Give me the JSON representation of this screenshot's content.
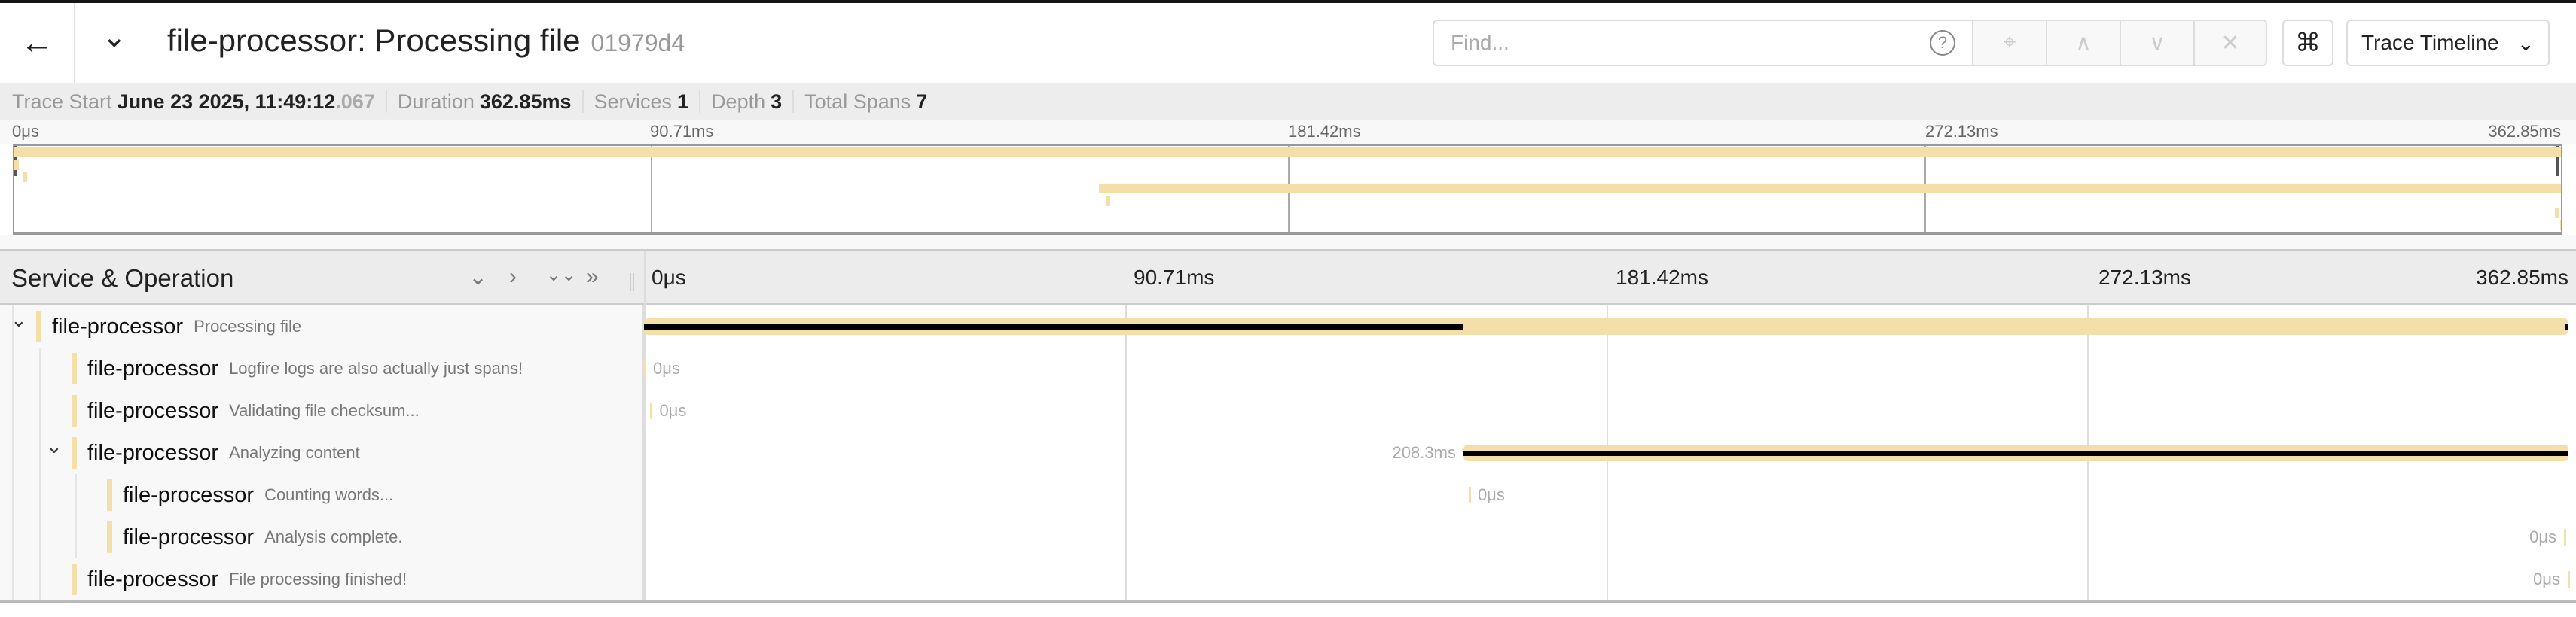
{
  "header": {
    "back_icon": "arrow-left-icon",
    "collapse_icon": "chevron-down-icon",
    "service": "file-processor",
    "operation": "Processing file",
    "title": "file-processor: Processing file",
    "trace_id_short": "01979d4"
  },
  "search": {
    "placeholder": "Find...",
    "value": "",
    "help_label": "?",
    "buttons": [
      {
        "name": "locate",
        "glyph": "⌖"
      },
      {
        "name": "previous",
        "glyph": "∧"
      },
      {
        "name": "next",
        "glyph": "∨"
      },
      {
        "name": "clear",
        "glyph": "✕"
      }
    ]
  },
  "shortcut_label": "⌘",
  "view_select": {
    "value": "Trace Timeline",
    "chevron": "⌄"
  },
  "info": {
    "trace_start_label": "Trace Start",
    "trace_start": "June 23 2025, 11:49:12",
    "trace_start_ms": ".067",
    "duration_label": "Duration",
    "duration": "362.85ms",
    "services_label": "Services",
    "services": "1",
    "depth_label": "Depth",
    "depth": "3",
    "total_spans_label": "Total Spans",
    "total_spans": "7"
  },
  "ticks": [
    "0μs",
    "90.71ms",
    "181.42ms",
    "272.13ms",
    "362.85ms"
  ],
  "column_header": {
    "title": "Service & Operation",
    "icons": [
      "⌄",
      "›",
      "⌄⌄",
      "»"
    ]
  },
  "colors": {
    "span": "#f5dfa9",
    "critical_path": "#000000"
  },
  "total_ms": 362.85,
  "spans": [
    {
      "service": "file-processor",
      "operation": "Processing file",
      "depth": 0,
      "expanded": true,
      "start_ms": 0,
      "duration_ms": 362.85,
      "critical": [
        [
          0,
          154.5
        ],
        [
          362.3,
          362.85
        ]
      ]
    },
    {
      "service": "file-processor",
      "operation": "Logfire logs are also actually just spans!",
      "depth": 1,
      "start_ms": 0,
      "duration_ms": 0,
      "duration_label": "0μs"
    },
    {
      "service": "file-processor",
      "operation": "Validating file checksum...",
      "depth": 1,
      "start_ms": 1.2,
      "duration_ms": 0,
      "duration_label": "0μs"
    },
    {
      "service": "file-processor",
      "operation": "Analyzing content",
      "depth": 1,
      "expanded": true,
      "start_ms": 154.5,
      "duration_ms": 208.3,
      "duration_label": "208.3ms",
      "critical": [
        [
          154.5,
          362.8
        ]
      ]
    },
    {
      "service": "file-processor",
      "operation": "Counting words...",
      "depth": 2,
      "start_ms": 155.5,
      "duration_ms": 0,
      "duration_label": "0μs"
    },
    {
      "service": "file-processor",
      "operation": "Analysis complete.",
      "depth": 2,
      "start_ms": 362.0,
      "duration_ms": 0,
      "duration_label": "0μs"
    },
    {
      "service": "file-processor",
      "operation": "File processing finished!",
      "depth": 1,
      "start_ms": 362.7,
      "duration_ms": 0,
      "duration_label": "0μs"
    }
  ]
}
